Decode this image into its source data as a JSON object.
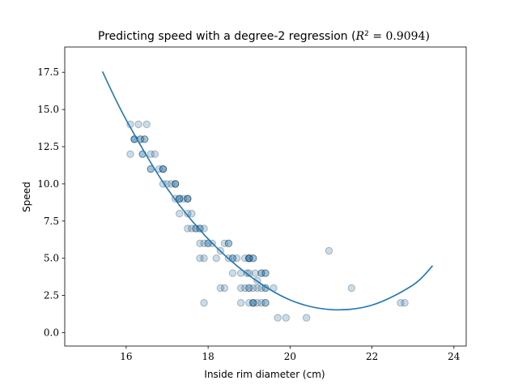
{
  "chart_data": {
    "type": "scatter",
    "title": "Predicting speed with a degree-2 regression (R² = 0.9094)",
    "title_prefix": "Predicting speed with a degree-2 regression (",
    "title_r2": "R",
    "title_r2_sup": "2",
    "title_r2_value": " = 0.9094)",
    "xlabel": "Inside rim diameter (cm)",
    "ylabel": "Speed",
    "xlim": [
      14.5,
      24.3
    ],
    "ylim": [
      -0.9,
      19.2
    ],
    "xticks": [
      16,
      18,
      20,
      22,
      24
    ],
    "xtick_labels": [
      "16",
      "18",
      "20",
      "22",
      "24"
    ],
    "yticks": [
      0.0,
      2.5,
      5.0,
      7.5,
      10.0,
      12.5,
      15.0,
      17.5
    ],
    "ytick_labels": [
      "0.0",
      "2.5",
      "5.0",
      "7.5",
      "10.0",
      "12.5",
      "15.0",
      "17.5"
    ],
    "grid": false,
    "scatter_color": "#1f77b4",
    "point_edge_color": "#000000",
    "point_alpha": 0.25,
    "curve_color": "#1f77b4",
    "points": [
      [
        16.1,
        14
      ],
      [
        16.3,
        14
      ],
      [
        16.5,
        14
      ],
      [
        16.1,
        12
      ],
      [
        16.2,
        13
      ],
      [
        16.2,
        13
      ],
      [
        16.2,
        13
      ],
      [
        16.35,
        13
      ],
      [
        16.35,
        13
      ],
      [
        16.45,
        13
      ],
      [
        16.45,
        13
      ],
      [
        16.4,
        12
      ],
      [
        16.4,
        12
      ],
      [
        16.6,
        12
      ],
      [
        16.7,
        12
      ],
      [
        16.6,
        11
      ],
      [
        16.6,
        11
      ],
      [
        16.8,
        11
      ],
      [
        16.9,
        11
      ],
      [
        16.9,
        11
      ],
      [
        16.9,
        11
      ],
      [
        16.9,
        10
      ],
      [
        17.0,
        10
      ],
      [
        17.1,
        10
      ],
      [
        17.2,
        10
      ],
      [
        17.2,
        10
      ],
      [
        17.2,
        10
      ],
      [
        17.2,
        9
      ],
      [
        17.3,
        9
      ],
      [
        17.3,
        9
      ],
      [
        17.3,
        9
      ],
      [
        17.4,
        9
      ],
      [
        17.5,
        9
      ],
      [
        17.5,
        9
      ],
      [
        17.5,
        9
      ],
      [
        17.3,
        8
      ],
      [
        17.5,
        8
      ],
      [
        17.6,
        8
      ],
      [
        17.5,
        7
      ],
      [
        17.6,
        7
      ],
      [
        17.7,
        7
      ],
      [
        17.7,
        7
      ],
      [
        17.8,
        7
      ],
      [
        17.8,
        7
      ],
      [
        17.9,
        7
      ],
      [
        17.8,
        6
      ],
      [
        17.9,
        6
      ],
      [
        18.0,
        6
      ],
      [
        18.0,
        6
      ],
      [
        18.1,
        6
      ],
      [
        18.4,
        6
      ],
      [
        18.5,
        6
      ],
      [
        18.5,
        6
      ],
      [
        18.3,
        5.5
      ],
      [
        17.8,
        5
      ],
      [
        17.9,
        5
      ],
      [
        18.2,
        5
      ],
      [
        18.5,
        5
      ],
      [
        18.6,
        5
      ],
      [
        18.6,
        5
      ],
      [
        18.7,
        5
      ],
      [
        18.9,
        5
      ],
      [
        19.0,
        5
      ],
      [
        19.0,
        5
      ],
      [
        19.0,
        5
      ],
      [
        19.0,
        5
      ],
      [
        19.1,
        5
      ],
      [
        19.1,
        5
      ],
      [
        18.6,
        4
      ],
      [
        18.8,
        4
      ],
      [
        18.95,
        4
      ],
      [
        19.0,
        4
      ],
      [
        19.15,
        4
      ],
      [
        19.3,
        4
      ],
      [
        19.3,
        4
      ],
      [
        19.4,
        4
      ],
      [
        19.4,
        4
      ],
      [
        19.2,
        3.5
      ],
      [
        18.3,
        3
      ],
      [
        18.4,
        3
      ],
      [
        18.8,
        3
      ],
      [
        18.9,
        3
      ],
      [
        19.0,
        3
      ],
      [
        19.0,
        3
      ],
      [
        19.1,
        3
      ],
      [
        19.2,
        3
      ],
      [
        19.3,
        3
      ],
      [
        19.4,
        3
      ],
      [
        19.4,
        3
      ],
      [
        19.6,
        3
      ],
      [
        17.9,
        2
      ],
      [
        18.8,
        2
      ],
      [
        19.0,
        2
      ],
      [
        19.1,
        2
      ],
      [
        19.1,
        2
      ],
      [
        19.1,
        2
      ],
      [
        19.2,
        2
      ],
      [
        19.3,
        2
      ],
      [
        19.4,
        2
      ],
      [
        19.4,
        2
      ],
      [
        19.7,
        1
      ],
      [
        19.9,
        1
      ],
      [
        20.4,
        1
      ],
      [
        20.95,
        5.5
      ],
      [
        21.5,
        3
      ],
      [
        22.7,
        2
      ],
      [
        22.8,
        2
      ]
    ],
    "regression": {
      "degree": 2,
      "r2": 0.9094,
      "x_range": [
        15.42,
        23.48
      ],
      "points": [
        [
          15.42,
          17.55
        ],
        [
          16.0,
          14.3
        ],
        [
          17.0,
          9.7
        ],
        [
          18.0,
          6.3
        ],
        [
          19.0,
          3.85
        ],
        [
          20.0,
          2.2
        ],
        [
          21.0,
          1.55
        ],
        [
          22.0,
          1.85
        ],
        [
          23.0,
          3.2
        ],
        [
          23.48,
          4.5
        ]
      ]
    }
  }
}
